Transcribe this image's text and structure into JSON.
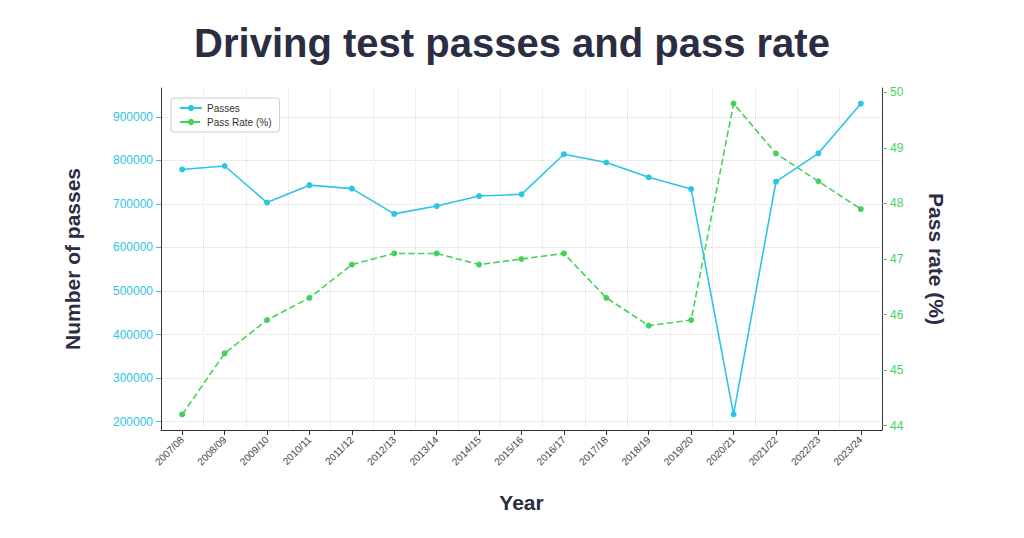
{
  "chart_data": {
    "type": "line",
    "title": "Driving test passes and pass rate",
    "x_label": "Year",
    "y_label": "Number of passes",
    "y2_label": "Pass rate (%)",
    "categories": [
      "2007/08",
      "2008/09",
      "2009/10",
      "2010/11",
      "2011/12",
      "2012/13",
      "2013/14",
      "2014/15",
      "2015/16",
      "2016/17",
      "2017/18",
      "2018/19",
      "2019/20",
      "2020/21",
      "2021/22",
      "2022/23",
      "2023/24"
    ],
    "series": [
      {
        "name": "Passes",
        "color": "#2ec4e6",
        "marker": "circle",
        "line_style": "solid",
        "values": [
          779000,
          787000,
          703000,
          743000,
          735000,
          677000,
          695000,
          718000,
          722000,
          814000,
          795000,
          761000,
          734000,
          217000,
          751000,
          816000,
          930000
        ]
      },
      {
        "name": "Pass Rate (%)",
        "color": "#44d35a",
        "marker": "circle",
        "line_style": "dashed",
        "axis": "y2",
        "values": [
          44.2,
          45.3,
          45.9,
          46.3,
          46.9,
          47.1,
          47.1,
          46.9,
          47.0,
          47.1,
          46.3,
          45.8,
          45.9,
          49.8,
          48.9,
          48.4,
          47.9
        ]
      }
    ],
    "ylim": [
      181000,
      966000
    ],
    "yticks": [
      200000,
      300000,
      400000,
      500000,
      600000,
      700000,
      800000,
      900000
    ],
    "y2lim": [
      43.92,
      50.08
    ],
    "y2ticks": [
      44,
      45,
      46,
      47,
      48,
      49,
      50
    ],
    "grid": true,
    "legend": "upper left"
  }
}
